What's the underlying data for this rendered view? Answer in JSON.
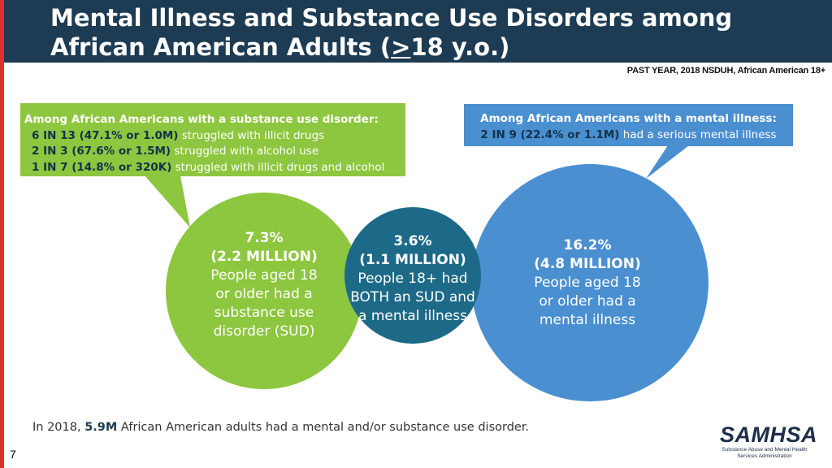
{
  "header": {
    "title_line1": "Mental Illness and Substance Use Disorders among",
    "title_line2_pre": "African American Adults (",
    "title_line2_underlined": ">",
    "title_line2_post": "18 y.o.)"
  },
  "subheader": "PAST YEAR, 2018 NSDUH, African American 18+",
  "sud_callout": {
    "heading": "Among African Americans with a substance use disorder:",
    "lines": [
      {
        "bold": "6 IN 13 (47.1% or 1.0M)",
        "rest": " struggled with illicit drugs"
      },
      {
        "bold": "2 IN 3 (67.6% or 1.5M)",
        "rest": " struggled with alcohol use"
      },
      {
        "bold": "1 IN 7 (14.8% or 320K)",
        "rest": " struggled with illicit drugs and alcohol"
      }
    ]
  },
  "mi_callout": {
    "heading": "Among African Americans with a mental illness:",
    "bold": "2 IN 9 (22.4% or 1.1M)",
    "rest": " had a serious mental illness"
  },
  "circles": {
    "sud": {
      "pct": "7.3%",
      "count": "(2.2 MILLION)",
      "desc_lines": [
        "People aged 18",
        "or older had a",
        "substance use",
        "disorder (SUD)"
      ],
      "color": "#8dc63f"
    },
    "both": {
      "pct": "3.6%",
      "count": "(1.1 MILLION)",
      "desc_lines": [
        "People 18+ had",
        "BOTH an SUD and",
        "a mental illness"
      ],
      "color": "#1c6a87"
    },
    "mi": {
      "pct": "16.2%",
      "count": "(4.8 MILLION)",
      "desc_lines": [
        "People aged 18",
        "or older had a",
        "mental illness"
      ],
      "color": "#4a8fd0"
    }
  },
  "footer": {
    "pre": "In 2018, ",
    "bold": "5.9M",
    "post": " African American adults had a mental and/or substance use disorder."
  },
  "page_number": "7",
  "logo": {
    "word": "SAMHSA",
    "sub_line1": "Substance Abuse and Mental Health",
    "sub_line2": "Services Administration"
  }
}
